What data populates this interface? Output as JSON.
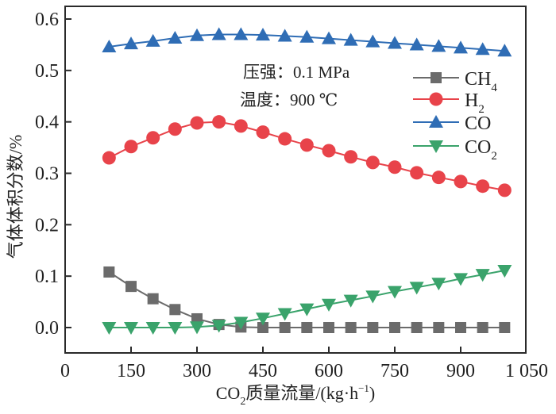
{
  "chart_data": {
    "type": "line",
    "title": "",
    "xlabel": "CO2质量流量/(kg·h⁻¹)",
    "xlabel_parts": {
      "pre": "CO",
      "sub": "2",
      "post": "质量流量/(kg·h",
      "sup": "−1",
      "end": ")"
    },
    "ylabel": "气体体积分数/%",
    "xlim": [
      0,
      1050
    ],
    "ylim": [
      -0.05,
      0.62
    ],
    "xticks": [
      0,
      150,
      300,
      450,
      600,
      750,
      900,
      1050
    ],
    "xtick_labels": [
      "0",
      "150",
      "300",
      "450",
      "600",
      "750",
      "900",
      "1 050"
    ],
    "yticks": [
      0.0,
      0.1,
      0.2,
      0.3,
      0.4,
      0.5,
      0.6
    ],
    "ytick_labels": [
      "0.0",
      "0.1",
      "0.2",
      "0.3",
      "0.4",
      "0.5",
      "0.6"
    ],
    "grid": false,
    "legend_position": "top-right",
    "annotations": [
      "压强：0.1 MPa",
      "温度：900 ℃"
    ],
    "x": [
      100,
      150,
      200,
      250,
      300,
      350,
      400,
      450,
      500,
      550,
      600,
      650,
      700,
      750,
      800,
      850,
      900,
      950,
      1000
    ],
    "series": [
      {
        "name": "CH4",
        "label_main": "CH",
        "label_sub": "4",
        "marker": "square",
        "color": "#6b6b6b",
        "values": [
          0.108,
          0.08,
          0.056,
          0.035,
          0.017,
          0.006,
          0.001,
          0.0,
          0.0,
          0.0,
          0.0,
          0.0,
          0.0,
          0.0,
          0.0,
          0.0,
          0.0,
          0.0,
          0.0
        ]
      },
      {
        "name": "H2",
        "label_main": "H",
        "label_sub": "2",
        "marker": "circle",
        "color": "#e8434a",
        "values": [
          0.33,
          0.352,
          0.369,
          0.386,
          0.398,
          0.4,
          0.392,
          0.38,
          0.367,
          0.355,
          0.344,
          0.332,
          0.321,
          0.312,
          0.301,
          0.292,
          0.284,
          0.275,
          0.267
        ]
      },
      {
        "name": "CO",
        "label_main": "CO",
        "label_sub": "",
        "marker": "triangle-up",
        "color": "#2f6db5",
        "values": [
          0.546,
          0.552,
          0.557,
          0.563,
          0.568,
          0.57,
          0.57,
          0.569,
          0.567,
          0.565,
          0.562,
          0.559,
          0.556,
          0.553,
          0.55,
          0.547,
          0.544,
          0.541,
          0.538
        ]
      },
      {
        "name": "CO2",
        "label_main": "CO",
        "label_sub": "2",
        "marker": "triangle-down",
        "color": "#3aa36b",
        "values": [
          0.0,
          0.0,
          0.0,
          0.0,
          0.001,
          0.004,
          0.01,
          0.018,
          0.027,
          0.036,
          0.045,
          0.053,
          0.061,
          0.07,
          0.078,
          0.086,
          0.095,
          0.103,
          0.111
        ]
      }
    ]
  }
}
